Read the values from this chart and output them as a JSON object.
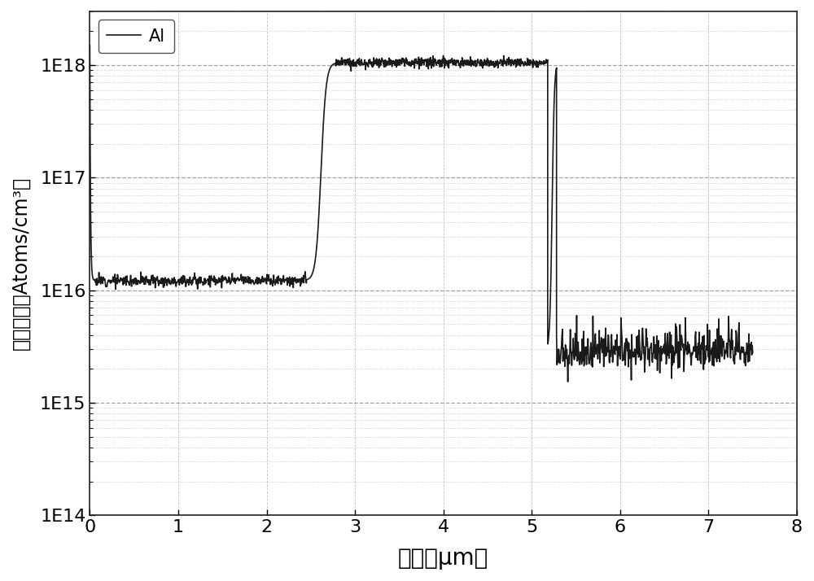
{
  "title": "",
  "xlabel": "深度（μm）",
  "ylabel": "掺杂浓度（Atoms/cm³）",
  "legend_label": "Al",
  "line_color": "#1a1a1a",
  "line_width": 1.2,
  "xlim": [
    0,
    8
  ],
  "ylim_log": [
    100000000000000.0,
    3e+18
  ],
  "background_color": "#ffffff",
  "grid_major_color": "#999999",
  "grid_minor_color": "#bbbbbb",
  "xlabel_fontsize": 20,
  "ylabel_fontsize": 17,
  "tick_fontsize": 16,
  "legend_fontsize": 15,
  "regions": {
    "initial_high": 1.5e+18,
    "initial_drop_end": 0.06,
    "flat_low_start": 0.06,
    "flat_low_end": 2.45,
    "flat_low_val": 1.22e+16,
    "rise_start": 2.45,
    "rise_end": 2.78,
    "flat_high_start": 2.78,
    "flat_high_end": 5.18,
    "flat_high_val": 1.05e+18,
    "drop_start": 5.18,
    "drop_end": 5.28,
    "flat_noise_start": 5.28,
    "flat_noise_end": 7.5,
    "flat_noise_val": 3000000000000000.0
  }
}
